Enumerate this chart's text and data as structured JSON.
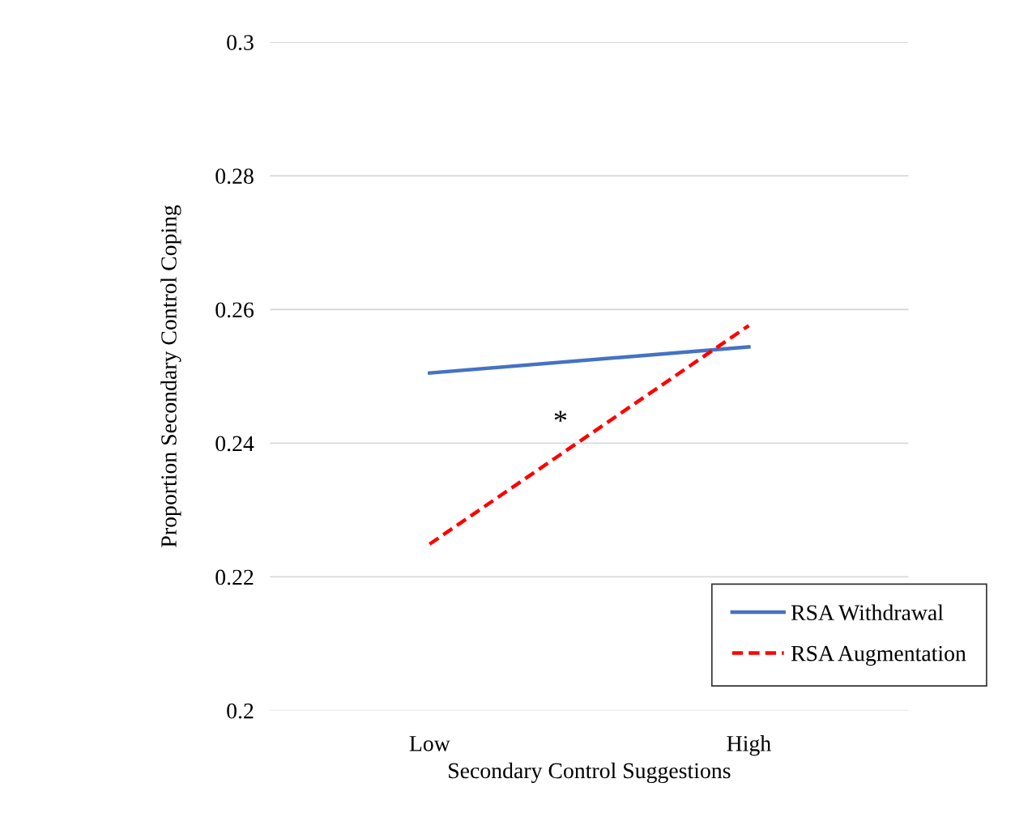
{
  "chart_data": {
    "type": "line",
    "xlabel": "Secondary Control Suggestions",
    "ylabel": "Proportion Secondary Control Coping",
    "categories": [
      "Low",
      "High"
    ],
    "series": [
      {
        "name": "RSA Withdrawal",
        "color": "#4472c4",
        "values": [
          0.2505,
          0.2544
        ],
        "line_style": "solid"
      },
      {
        "name": "RSA Augmentation",
        "color": "#ff0000",
        "values": [
          0.2249,
          0.2576
        ],
        "line_style": "dashed"
      }
    ],
    "ylim": [
      0.2,
      0.3
    ],
    "yticks": [
      {
        "value": 0.2,
        "label": "0.2"
      },
      {
        "value": 0.22,
        "label": "0.22"
      },
      {
        "value": 0.24,
        "label": "0.24"
      },
      {
        "value": 0.26,
        "label": "0.26"
      },
      {
        "value": 0.28,
        "label": "0.28"
      },
      {
        "value": 0.3,
        "label": "0.3"
      }
    ],
    "grid": "y",
    "legend": "bottom right",
    "marker": "none",
    "annotations": [
      "*"
    ]
  }
}
